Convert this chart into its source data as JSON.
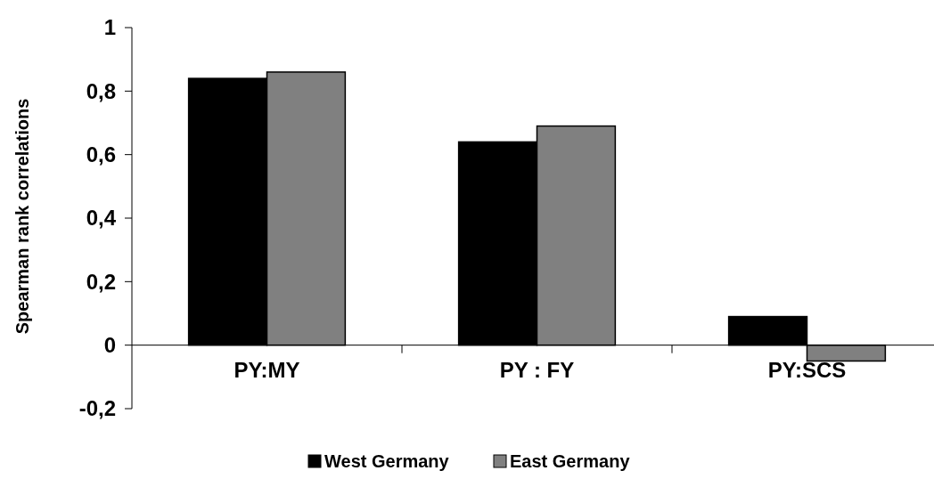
{
  "chart_data": {
    "type": "bar",
    "ylabel": "Spearman rank correlations",
    "categories": [
      "PY:MY",
      "PY : FY",
      "PY:SCS"
    ],
    "series": [
      {
        "name": "West Germany",
        "color": "#000000",
        "values": [
          0.84,
          0.64,
          0.09
        ]
      },
      {
        "name": "East Germany",
        "color": "#808080",
        "values": [
          0.86,
          0.69,
          -0.05
        ]
      }
    ],
    "ylim": [
      -0.2,
      1
    ],
    "yticks": [
      {
        "value": -0.2,
        "label": "-0,2"
      },
      0,
      {
        "value": 0.2,
        "label": "0,2"
      },
      {
        "value": 0.4,
        "label": "0,4"
      },
      {
        "value": 0.6,
        "label": "0,6"
      },
      {
        "value": 0.8,
        "label": "0,8"
      },
      1
    ],
    "grid": false,
    "legend": "bottom"
  }
}
